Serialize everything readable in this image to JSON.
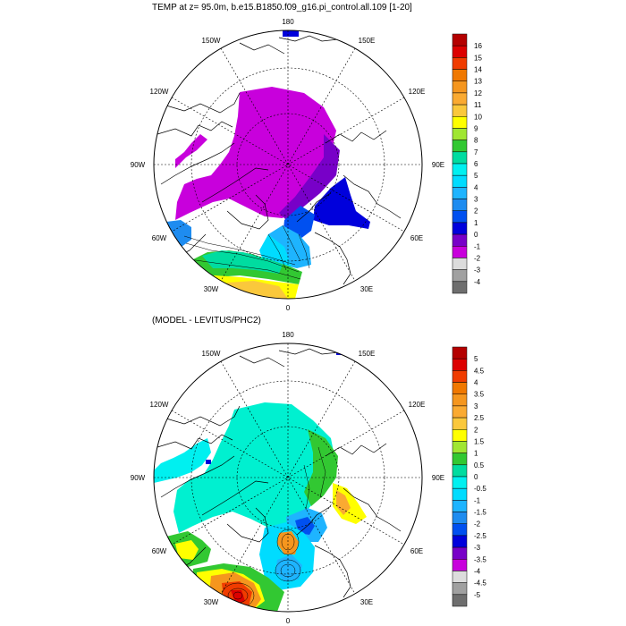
{
  "titles": {
    "top": "TEMP at z=  95.0m, b.e15.B1850.f09_g16.pi_control.all.109 [1-20]",
    "bottom": "(MODEL - LEVITUS/PHC2)"
  },
  "longitude_labels": [
    "180",
    "150E",
    "120E",
    "90E",
    "60E",
    "30E",
    "0",
    "30W",
    "60W",
    "90W",
    "120W",
    "150W"
  ],
  "colors": {
    "land_outline": "#000000",
    "ocean_white": "#ffffff"
  },
  "colorbar_top": {
    "labels": [
      "16",
      "15",
      "14",
      "13",
      "12",
      "11",
      "10",
      "9",
      "8",
      "7",
      "6",
      "5",
      "4",
      "3",
      "2",
      "1",
      "0",
      "-1",
      "-2",
      "-3",
      "-4"
    ],
    "colors": [
      "#b40000",
      "#dc0000",
      "#f03c00",
      "#f07800",
      "#f5961e",
      "#faaa32",
      "#fac83c",
      "#ffff00",
      "#a0e632",
      "#32c832",
      "#00dca0",
      "#00f0f0",
      "#00dcff",
      "#1eb4ff",
      "#1e8cf0",
      "#0050f0",
      "#0000dc",
      "#7800c8",
      "#c800dc",
      "#dcdcdc",
      "#a0a0a0",
      "#6e6e6e"
    ]
  },
  "colorbar_bottom": {
    "labels": [
      "5",
      "4.5",
      "4",
      "3.5",
      "3",
      "2.5",
      "2",
      "1.5",
      "1",
      "0.5",
      "0",
      "-0.5",
      "-1",
      "-1.5",
      "-2",
      "-2.5",
      "-3",
      "-3.5",
      "-4",
      "-4.5",
      "-5"
    ],
    "colors": [
      "#b40000",
      "#dc0000",
      "#f03c00",
      "#f07800",
      "#f5961e",
      "#faaa32",
      "#fac83c",
      "#ffff00",
      "#a0e632",
      "#32c832",
      "#00dca0",
      "#00f0f0",
      "#00dcff",
      "#1eb4ff",
      "#1e8cf0",
      "#0050f0",
      "#0000dc",
      "#7800c8",
      "#c800dc",
      "#dcdcdc",
      "#a0a0a0",
      "#6e6e6e"
    ]
  }
}
